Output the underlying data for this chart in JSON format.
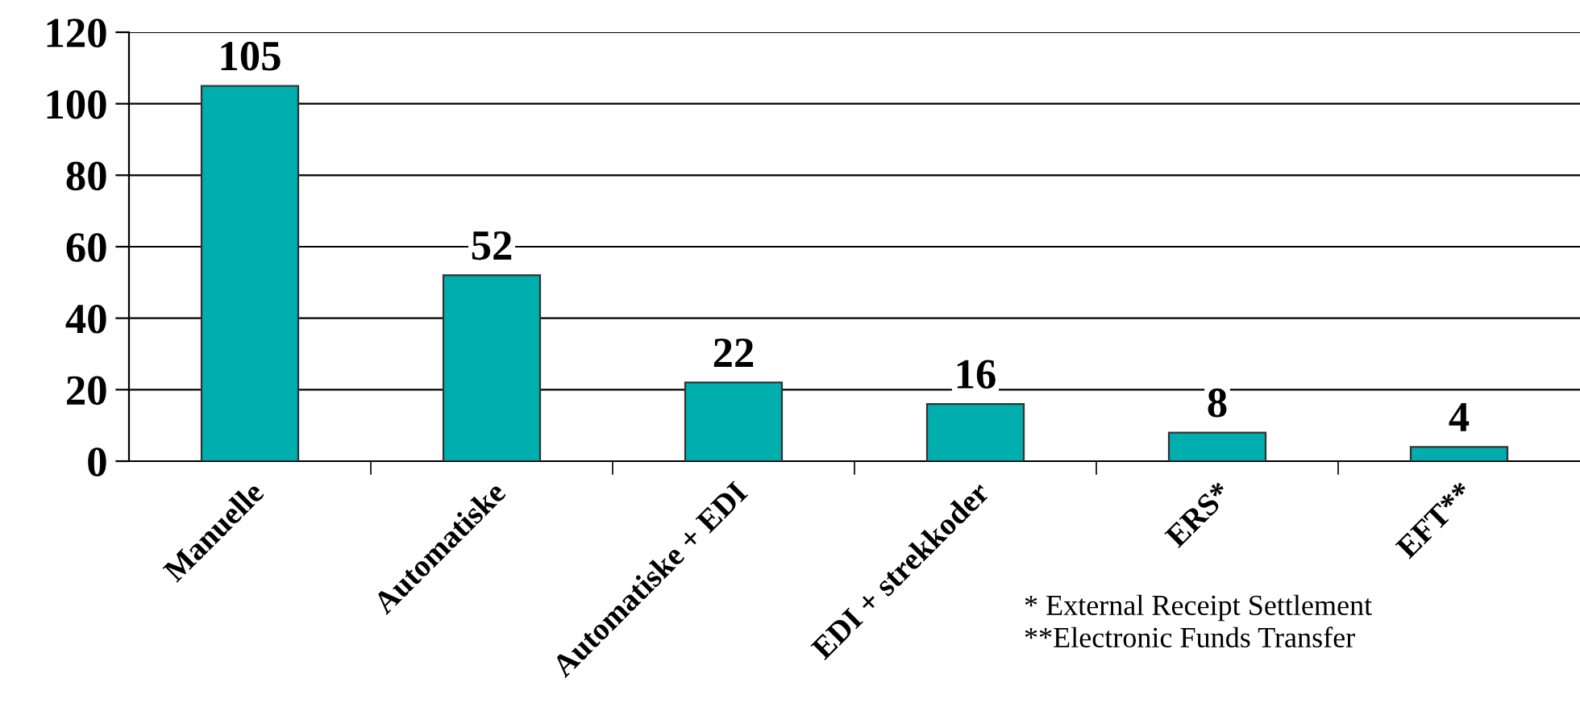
{
  "chart_data": {
    "type": "bar",
    "categories": [
      "Manuelle",
      "Automatiske",
      "Automatiske + EDI",
      "EDI + strekkoder",
      "ERS*",
      "EFT**"
    ],
    "values": [
      105,
      52,
      22,
      16,
      8,
      4
    ],
    "color": "#00aeae",
    "ylim": [
      0,
      120
    ],
    "yticks": [
      0,
      20,
      40,
      60,
      80,
      100,
      120
    ],
    "grid": "y",
    "data_labels": true,
    "legend": false,
    "annotations": [
      "* External Receipt Settlement",
      "**Electronic Funds Transfer"
    ]
  }
}
